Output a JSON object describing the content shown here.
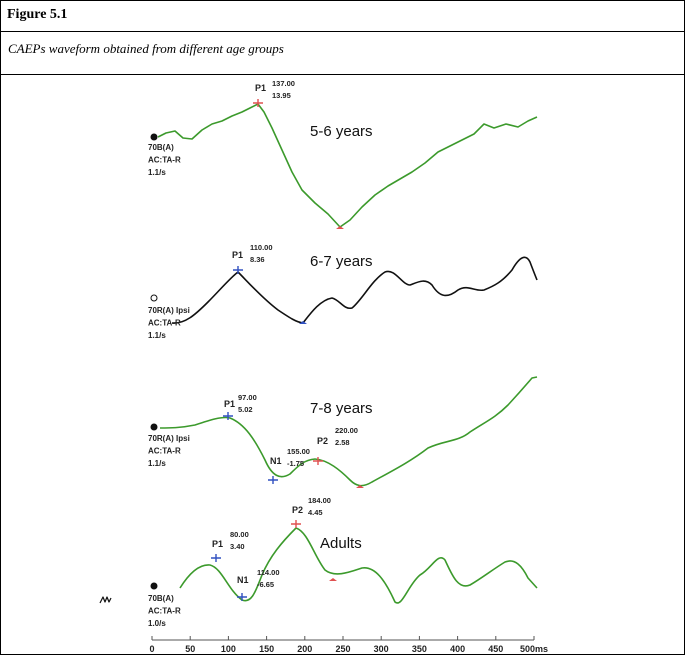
{
  "figure": {
    "label": "Figure 5.1",
    "caption": "CAEPs waveform obtained from different age groups"
  },
  "axis": {
    "xlim": [
      0,
      500
    ],
    "xticks": [
      0,
      50,
      100,
      150,
      200,
      250,
      300,
      350,
      400,
      450,
      {
        "value": 500,
        "label": "500ms"
      }
    ]
  },
  "panels": [
    {
      "title": "5-6 years",
      "settings": [
        "70B(A)",
        "AC:TA-R",
        "1.1/s"
      ],
      "peaks": [
        {
          "name": "P1",
          "latency": "137.00",
          "amplitude": "13.95"
        }
      ]
    },
    {
      "title": "6-7 years",
      "settings": [
        "70R(A) Ipsi",
        "AC:TA-R",
        "1.1/s"
      ],
      "peaks": [
        {
          "name": "P1",
          "latency": "110.00",
          "amplitude": "8.36"
        }
      ]
    },
    {
      "title": "7-8 years",
      "settings": [
        "70R(A) Ipsi",
        "AC:TA-R",
        "1.1/s"
      ],
      "peaks": [
        {
          "name": "P1",
          "latency": "97.00",
          "amplitude": "5.02"
        },
        {
          "name": "N1",
          "latency": "155.00",
          "amplitude": "-1.75"
        },
        {
          "name": "P2",
          "latency": "220.00",
          "amplitude": "2.58"
        }
      ]
    },
    {
      "title": "Adults",
      "settings": [
        "70B(A)",
        "AC:TA-R",
        "1.0/s"
      ],
      "peaks": [
        {
          "name": "P1",
          "latency": "80.00",
          "amplitude": "3.40"
        },
        {
          "name": "N1",
          "latency": "114.00",
          "amplitude": "-6.65"
        },
        {
          "name": "P2",
          "latency": "184.00",
          "amplitude": "4.45"
        }
      ]
    }
  ]
}
